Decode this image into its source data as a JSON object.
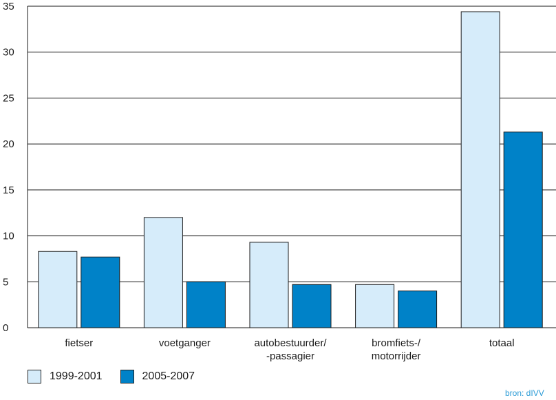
{
  "chart_data": {
    "type": "bar",
    "categories": [
      [
        "fietser"
      ],
      [
        "voetganger"
      ],
      [
        "autobestuurder/",
        "-passagier"
      ],
      [
        "bromfiets-/",
        "motorrijder"
      ],
      [
        "totaal"
      ]
    ],
    "series": [
      {
        "name": "1999-2001",
        "values": [
          8.3,
          12.0,
          9.3,
          4.7,
          34.4
        ]
      },
      {
        "name": "2005-2007",
        "values": [
          7.7,
          5.0,
          4.7,
          4.0,
          21.3
        ]
      }
    ],
    "ylim": [
      0,
      35
    ],
    "yticks": [
      0,
      5,
      10,
      15,
      20,
      25,
      30,
      35
    ],
    "grid": true,
    "legend_position": "bottom-left"
  },
  "colors": {
    "series_1": "#d6ecfa",
    "series_2": "#0082c8",
    "source_text": "#2a9bd6"
  },
  "legend": {
    "items": [
      {
        "label": "1999-2001"
      },
      {
        "label": "2005-2007"
      }
    ]
  },
  "source": "bron: dIVV"
}
